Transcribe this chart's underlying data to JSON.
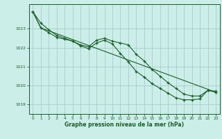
{
  "title": "Graphe pression niveau de la mer (hPa)",
  "bg_color": "#cceee8",
  "grid_color": "#aacccc",
  "line_color": "#1a5c2a",
  "xlim": [
    -0.5,
    23.5
  ],
  "ylim": [
    1018.5,
    1024.3
  ],
  "yticks": [
    1019,
    1020,
    1021,
    1022,
    1023
  ],
  "xticks": [
    0,
    1,
    2,
    3,
    4,
    5,
    6,
    7,
    8,
    9,
    10,
    11,
    12,
    13,
    14,
    15,
    16,
    17,
    18,
    19,
    20,
    21,
    22,
    23
  ],
  "line1_x": [
    0,
    1,
    2,
    3,
    4,
    5,
    6,
    7,
    8,
    9,
    10,
    11,
    12,
    13,
    14,
    15,
    16,
    17,
    18,
    19,
    20,
    21,
    22,
    23
  ],
  "line1_y": [
    1023.9,
    1023.3,
    1022.95,
    1022.65,
    1022.5,
    1022.35,
    1022.15,
    1022.05,
    1022.4,
    1022.5,
    1022.35,
    1022.25,
    1022.15,
    1021.65,
    1021.3,
    1020.85,
    1020.5,
    1020.15,
    1019.85,
    1019.55,
    1019.45,
    1019.45,
    1019.75,
    1019.7
  ],
  "line2_x": [
    0,
    1,
    2,
    3,
    4,
    5,
    6,
    7,
    8,
    9,
    10,
    11,
    12,
    13,
    14,
    15,
    16,
    17,
    18,
    19,
    20,
    21,
    22,
    23
  ],
  "line2_y": [
    1023.9,
    1023.05,
    1022.8,
    1022.55,
    1022.45,
    1022.35,
    1022.1,
    1021.95,
    1022.25,
    1022.4,
    1022.2,
    1021.7,
    1021.25,
    1020.75,
    1020.45,
    1020.1,
    1019.85,
    1019.6,
    1019.35,
    1019.25,
    1019.25,
    1019.3,
    1019.75,
    1019.65
  ],
  "line3_x": [
    0,
    1,
    23
  ],
  "line3_y": [
    1023.9,
    1023.05,
    1019.65
  ]
}
